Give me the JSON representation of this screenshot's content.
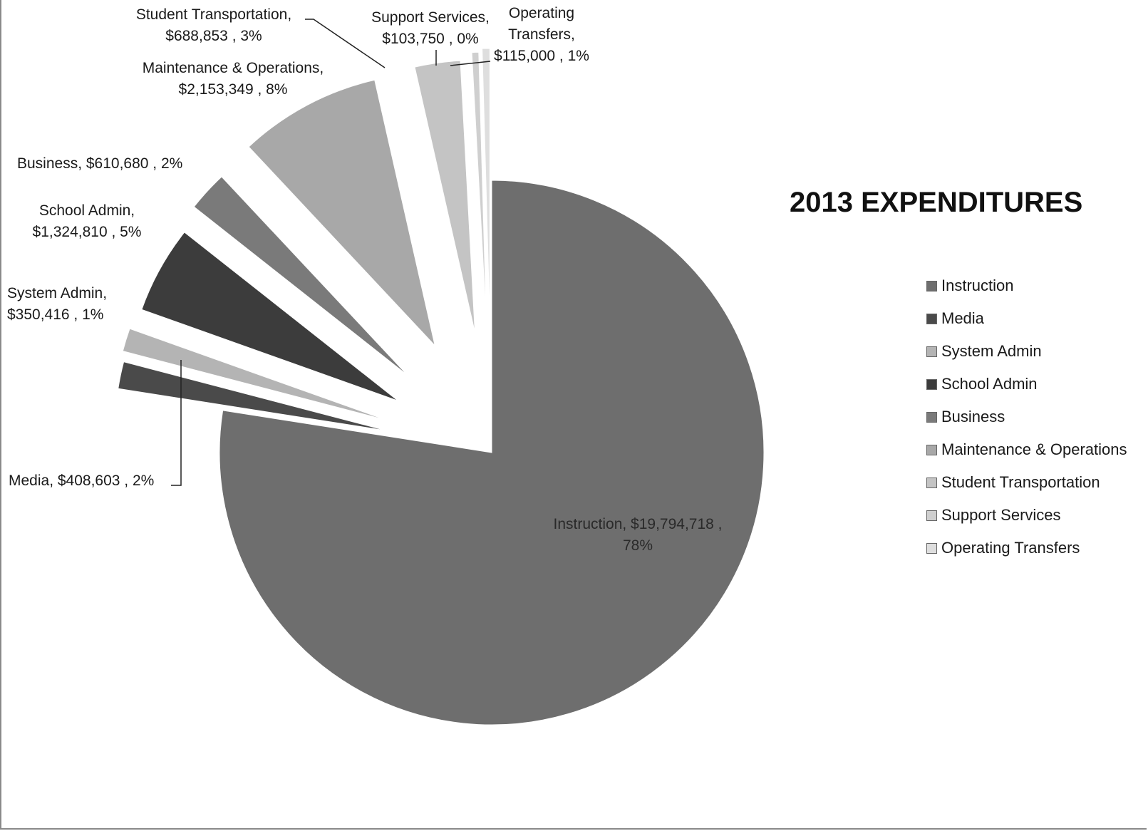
{
  "chart_data": {
    "type": "pie",
    "title": "2013 EXPENDITURES",
    "slices": [
      {
        "name": "Instruction",
        "value": 19794718,
        "value_label": "$19,794,718",
        "percent_label": "78%",
        "color": "#6e6e6e"
      },
      {
        "name": "Media",
        "value": 408603,
        "value_label": "$408,603",
        "percent_label": "2%",
        "color": "#4a4a4a"
      },
      {
        "name": "System Admin",
        "value": 350416,
        "value_label": "$350,416",
        "percent_label": "1%",
        "color": "#b4b4b4"
      },
      {
        "name": "School Admin",
        "value": 1324810,
        "value_label": "$1,324,810",
        "percent_label": "5%",
        "color": "#3c3c3c"
      },
      {
        "name": "Business",
        "value": 610680,
        "value_label": "$610,680",
        "percent_label": "2%",
        "color": "#7a7a7a"
      },
      {
        "name": "Maintenance & Operations",
        "value": 2153349,
        "value_label": "$2,153,349",
        "percent_label": "8%",
        "color": "#a8a8a8"
      },
      {
        "name": "Student Transportation",
        "value": 688853,
        "value_label": "$688,853",
        "percent_label": "3%",
        "color": "#c4c4c4"
      },
      {
        "name": "Support Services",
        "value": 103750,
        "value_label": "$103,750",
        "percent_label": "0%",
        "color": "#cfcfcf"
      },
      {
        "name": "Operating Transfers",
        "value": 115000,
        "value_label": "$115,000",
        "percent_label": "1%",
        "color": "#dedede"
      }
    ],
    "legend_position": "right"
  }
}
